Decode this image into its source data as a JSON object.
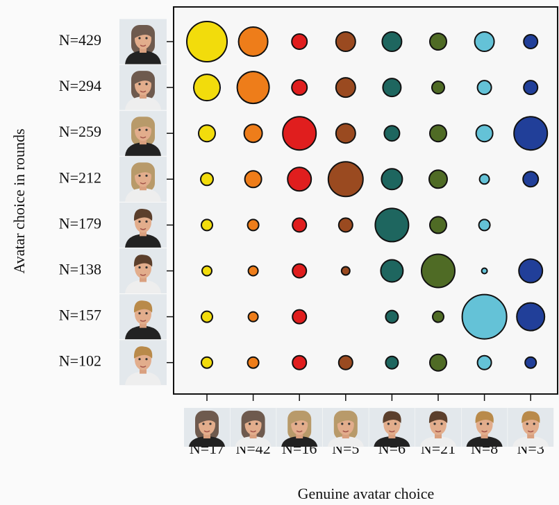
{
  "chart_data": {
    "type": "bubble-matrix",
    "x_label": "Genuine avatar choice",
    "y_label": "Avatar choice in rounds",
    "columns": [
      "N=17",
      "N=42",
      "N=16",
      "N=5",
      "N=6",
      "N=21",
      "N=8",
      "N=3"
    ],
    "rows": [
      "N=429",
      "N=294",
      "N=259",
      "N=212",
      "N=179",
      "N=138",
      "N=157",
      "N=102"
    ],
    "colors": [
      "#f2dc0c",
      "#ee7d1a",
      "#e01e1e",
      "#9a4a20",
      "#1e665f",
      "#4f6b25",
      "#64c2d7",
      "#213f99"
    ],
    "sizes": [
      [
        29,
        21,
        11,
        14,
        14,
        12,
        14,
        10
      ],
      [
        19,
        23,
        11,
        14,
        13,
        9,
        10,
        10
      ],
      [
        12,
        13,
        24,
        14,
        11,
        12,
        12,
        24
      ],
      [
        9,
        12,
        17,
        25,
        15,
        13,
        7,
        11
      ],
      [
        8,
        8,
        10,
        10,
        24,
        12,
        8,
        null
      ],
      [
        7,
        7,
        10,
        6,
        16,
        24,
        4,
        17
      ],
      [
        8,
        7,
        10,
        null,
        9,
        8,
        32,
        20
      ],
      [
        8,
        8,
        10,
        10,
        9,
        12,
        10,
        8
      ]
    ]
  }
}
